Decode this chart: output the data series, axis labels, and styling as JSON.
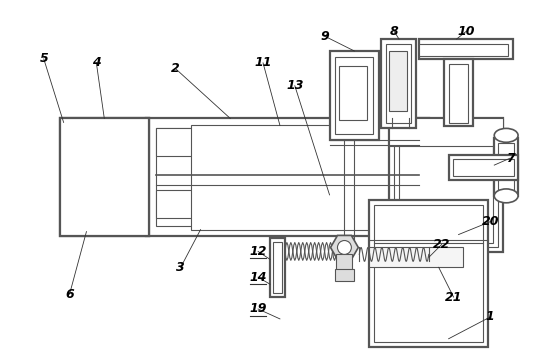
{
  "background_color": "#ffffff",
  "line_color": "#555555",
  "label_color": "#000000",
  "figsize": [
    5.42,
    3.58
  ],
  "dpi": 100
}
